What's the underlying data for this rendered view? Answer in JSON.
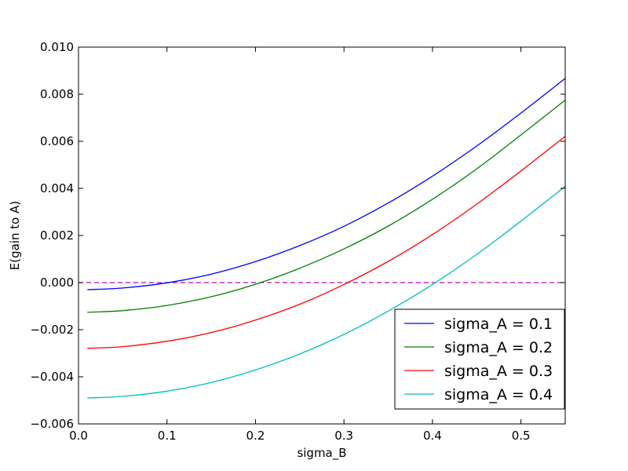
{
  "chart_data": {
    "type": "line",
    "title": "",
    "xlabel": "sigma_B",
    "ylabel": "E(gain to A)",
    "xlim": [
      0.0,
      0.55
    ],
    "ylim": [
      -0.006,
      0.01
    ],
    "x_ticks": [
      0.0,
      0.1,
      0.2,
      0.3,
      0.4,
      0.5
    ],
    "x_tick_labels": [
      "0.0",
      "0.1",
      "0.2",
      "0.3",
      "0.4",
      "0.5"
    ],
    "y_ticks": [
      -0.006,
      -0.004,
      -0.002,
      0.0,
      0.002,
      0.004,
      0.006,
      0.008,
      0.01
    ],
    "y_tick_labels": [
      "−0.006",
      "−0.004",
      "−0.002",
      "0.000",
      "0.002",
      "0.004",
      "0.006",
      "0.008",
      "0.010"
    ],
    "grid": false,
    "legend_position": "lower-right",
    "x": [
      0.01,
      0.05,
      0.1,
      0.15,
      0.2,
      0.25,
      0.3,
      0.35,
      0.4,
      0.45,
      0.5,
      0.55
    ],
    "series": [
      {
        "name": "sigma_A = 0.1",
        "color": "#0000ff",
        "values": [
          -0.0003,
          -0.00023,
          -1e-05,
          0.00036,
          0.00089,
          0.00157,
          0.00239,
          0.00338,
          0.00452,
          0.0058,
          0.0072,
          0.00867
        ]
      },
      {
        "name": "sigma_A = 0.2",
        "color": "#008000",
        "values": [
          -0.00126,
          -0.00119,
          -0.00097,
          -0.0006,
          -7e-05,
          0.00061,
          0.00143,
          0.0024,
          0.00354,
          0.00483,
          0.00627,
          0.00775
        ]
      },
      {
        "name": "sigma_A = 0.3",
        "color": "#ff0000",
        "values": [
          -0.00279,
          -0.00272,
          -0.00249,
          -0.00212,
          -0.00159,
          -0.00092,
          -8e-05,
          0.0009,
          0.00204,
          0.00333,
          0.00474,
          0.00621
        ]
      },
      {
        "name": "sigma_A = 0.4",
        "color": "#00bfbf",
        "values": [
          -0.0049,
          -0.00483,
          -0.00461,
          -0.00424,
          -0.00371,
          -0.00303,
          -0.0022,
          -0.00121,
          -8e-05,
          0.0012,
          0.00261,
          0.00409
        ]
      }
    ],
    "reference_line": {
      "y": 0.0,
      "style": "dashed",
      "color": "#bf00bf"
    }
  }
}
